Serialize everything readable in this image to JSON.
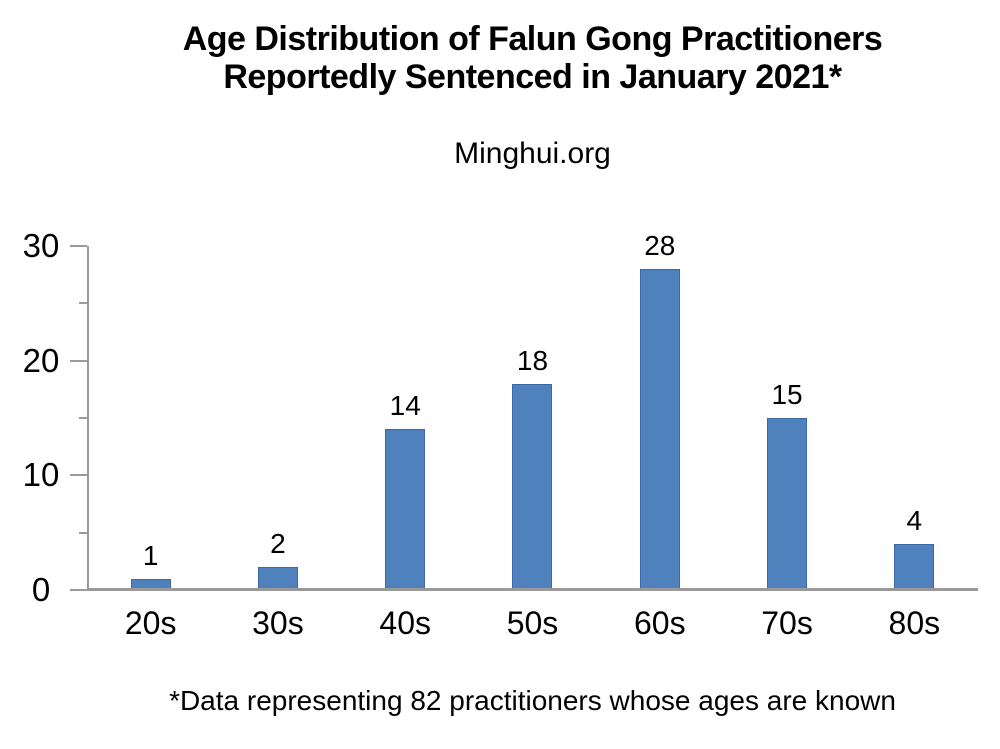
{
  "title": {
    "line1": "Age Distribution of Falun Gong Practitioners",
    "line2": "Reportedly Sentenced in January 2021*"
  },
  "chart_data": {
    "type": "bar",
    "title": "Age Distribution of Falun Gong Practitioners Reportedly Sentenced in January 2021*",
    "subtitle": "Minghui.org",
    "categories": [
      "20s",
      "30s",
      "40s",
      "50s",
      "60s",
      "70s",
      "80s"
    ],
    "values": [
      1,
      2,
      14,
      18,
      28,
      15,
      4
    ],
    "xlabel": "",
    "ylabel": "",
    "ylim": [
      0,
      30
    ],
    "yticks_major": [
      0,
      10,
      20,
      30
    ],
    "yticks_minor": [
      5,
      15,
      25
    ],
    "data_labels": true,
    "grid": false,
    "legend": "none",
    "footnote": "*Data representing 82 practitioners whose ages are known",
    "colors": {
      "bar_fill": "#4f81bd",
      "bar_border": "#3c69a5",
      "axis": "#9a9a9a",
      "text": "#000000",
      "background": "#ffffff"
    }
  }
}
